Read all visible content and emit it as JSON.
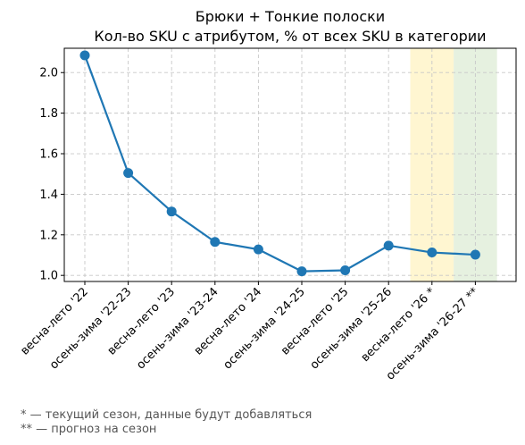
{
  "chart_data": {
    "type": "line",
    "title": "Брюки + Тонкие полоски",
    "subtitle": "Кол-во SKU с атрибутом, % от всех SKU в категории",
    "xlabel": "",
    "ylabel": "",
    "categories": [
      "весна-лето '22",
      "осень-зима '22-23",
      "весна-лето '23",
      "осень-зима '23-24",
      "весна-лето '24",
      "осень-зима '24-25",
      "весна-лето '25",
      "осень-зима '25-26",
      "весна-лето '26 *",
      "осень-зима '26-27 **"
    ],
    "series": [
      {
        "values": [
          2.085,
          1.505,
          1.315,
          1.165,
          1.128,
          1.02,
          1.025,
          1.147,
          1.113,
          1.102
        ]
      }
    ],
    "ylim": [
      0.97,
      2.12
    ],
    "yticks": [
      "1.0",
      "1.2",
      "1.4",
      "1.6",
      "1.8",
      "2.0"
    ],
    "grid": true,
    "line_color": "#1f77b4",
    "highlight_current_color": "#fff5cc",
    "highlight_forecast_color": "#e3f0dd"
  },
  "footnotes": {
    "current": "* — текущий сезон, данные будут добавляться",
    "forecast": "** — прогноз на сезон"
  }
}
